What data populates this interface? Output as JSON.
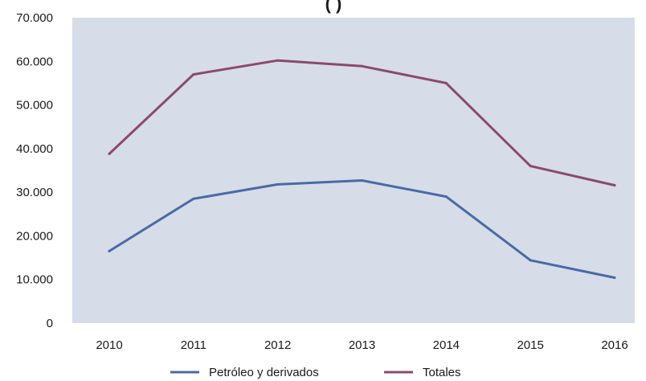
{
  "chart_data": {
    "type": "line",
    "title": "(                              )",
    "xlabel": "",
    "ylabel": "",
    "categories": [
      "2010",
      "2011",
      "2012",
      "2013",
      "2014",
      "2015",
      "2016"
    ],
    "ylim": [
      0,
      70000
    ],
    "y_ticks": [
      0,
      10000,
      20000,
      30000,
      40000,
      50000,
      60000,
      70000
    ],
    "y_tick_labels": [
      "0",
      "10.000",
      "20.000",
      "30.000",
      "40.000",
      "50.000",
      "60.000",
      "70.000"
    ],
    "grid": false,
    "legend_position": "bottom",
    "plot_background": "#d7dce9",
    "series": [
      {
        "name": "Petróleo y derivados",
        "color": "#4a6aa5",
        "values": [
          16500,
          28500,
          31800,
          32700,
          29000,
          14400,
          10400
        ]
      },
      {
        "name": "Totales",
        "color": "#8a4a6e",
        "values": [
          38800,
          57000,
          60200,
          58900,
          55000,
          36000,
          31600
        ]
      }
    ]
  }
}
